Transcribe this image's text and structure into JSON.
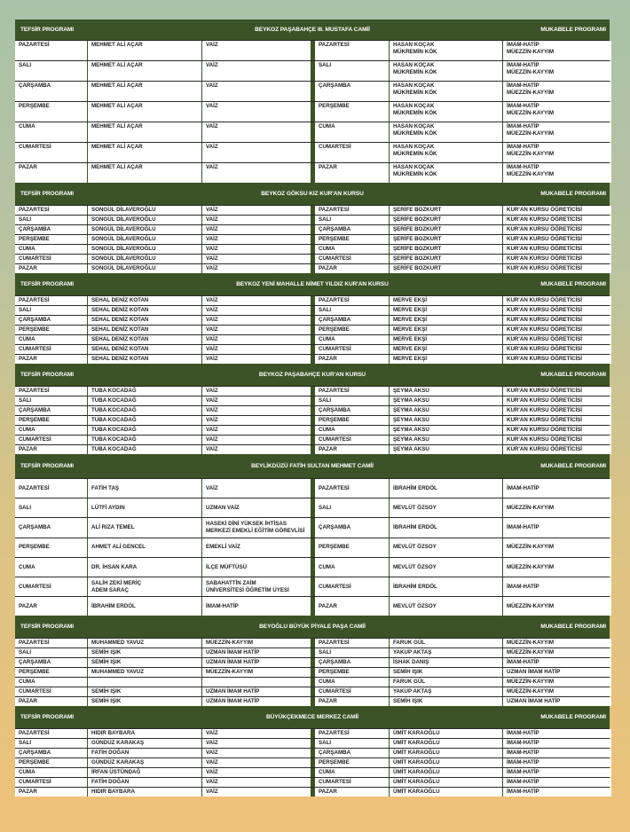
{
  "labels": {
    "left": "TEFSİR PROGRAMI",
    "right": "MUKABELE PROGRAMI"
  },
  "colors": {
    "panel": "#3b5326",
    "cell": "#ffffff"
  },
  "sections": [
    {
      "title": "BEYKOZ PAŞABAHÇE III. MUSTAFA CAMİİ",
      "rows": [
        [
          "PAZARTESİ",
          "MEHMET ALİ AÇAR",
          "VAİZ",
          "PAZARTESİ",
          "HASAN KOÇAK\nMÜKREMİN KÖK",
          "İMAM-HATİP\nMÜEZZİN-KAYYIM"
        ],
        [
          "SALI",
          "MEHMET ALİ AÇAR",
          "VAİZ",
          "SALI",
          "HASAN KOÇAK\nMÜKREMİN KÖK",
          "İMAM-HATİP\nMÜEZZİN-KAYYIM"
        ],
        [
          "ÇARŞAMBA",
          "MEHMET ALİ AÇAR",
          "VAİZ",
          "ÇARŞAMBA",
          "HASAN KOÇAK\nMÜKREMİN KÖK",
          "İMAM-HATİP\nMÜEZZİN-KAYYIM"
        ],
        [
          "PERŞEMBE",
          "MEHMET ALİ AÇAR",
          "VAİZ",
          "PERŞEMBE",
          "HASAN KOÇAK\nMÜKREMİN KÖK",
          "İMAM-HATİP\nMÜEZZİN-KAYYIM"
        ],
        [
          "CUMA",
          "MEHMET ALİ AÇAR",
          "VAİZ",
          "CUMA",
          "HASAN KOÇAK\nMÜKREMİN KÖK",
          "İMAM-HATİP\nMÜEZZİN-KAYYIM"
        ],
        [
          "CUMARTESİ",
          "MEHMET ALİ AÇAR",
          "VAİZ",
          "CUMARTESİ",
          "HASAN KOÇAK\nMÜKREMİN KÖK",
          "İMAM-HATİP\nMÜEZZİN-KAYYIM"
        ],
        [
          "PAZAR",
          "MEHMET ALİ AÇAR",
          "VAİZ",
          "PAZAR",
          "HASAN KOÇAK\nMÜKREMİN KÖK",
          "İMAM-HATİP\nMÜEZZİN-KAYYIM"
        ]
      ]
    },
    {
      "title": "BEYKOZ GÖKSU KIZ KUR'AN KURSU",
      "rows": [
        [
          "PAZARTESİ",
          "SONGÜL DİLAVEROĞLU",
          "VAİZ",
          "PAZARTESİ",
          "ŞERİFE BOZKURT",
          "KUR'AN KURSU ÖĞRETİCİSİ"
        ],
        [
          "SALI",
          "SONGÜL DİLAVEROĞLU",
          "VAİZ",
          "SALI",
          "ŞERİFE BOZKURT",
          "KUR'AN KURSU ÖĞRETİCİSİ"
        ],
        [
          "ÇARŞAMBA",
          "SONGÜL DİLAVEROĞLU",
          "VAİZ",
          "ÇARŞAMBA",
          "ŞERİFE BOZKURT",
          "KUR'AN KURSU ÖĞRETİCİSİ"
        ],
        [
          "PERŞEMBE",
          "SONGÜL DİLAVEROĞLU",
          "VAİZ",
          "PERŞEMBE",
          "ŞERİFE BOZKURT",
          "KUR'AN KURSU ÖĞRETİCİSİ"
        ],
        [
          "CUMA",
          "SONGÜL DİLAVEROĞLU",
          "VAİZ",
          "CUMA",
          "ŞERİFE BOZKURT",
          "KUR'AN KURSU ÖĞRETİCİSİ"
        ],
        [
          "CUMARTESİ",
          "SONGÜL DİLAVEROĞLU",
          "VAİZ",
          "CUMARTESİ",
          "ŞERİFE BOZKURT",
          "KUR'AN KURSU ÖĞRETİCİSİ"
        ],
        [
          "PAZAR",
          "SONGÜL DİLAVEROĞLU",
          "VAİZ",
          "PAZAR",
          "ŞERİFE BOZKURT",
          "KUR'AN KURSU ÖĞRETİCİSİ"
        ]
      ]
    },
    {
      "title": "BEYKOZ YENİ MAHALLE NİMET YILDIZ KUR'AN KURSU",
      "rows": [
        [
          "PAZARTESİ",
          "SEHAL DENİZ KOTAN",
          "VAİZ",
          "PAZARTESİ",
          "MERVE EKŞİ",
          "KUR'AN KURSU ÖĞRETİCİSİ"
        ],
        [
          "SALI",
          "SEHAL DENİZ KOTAN",
          "VAİZ",
          "SALI",
          "MERVE EKŞİ",
          "KUR'AN KURSU ÖĞRETİCİSİ"
        ],
        [
          "ÇARŞAMBA",
          "SEHAL DENİZ KOTAN",
          "VAİZ",
          "ÇARŞAMBA",
          "MERVE EKŞİ",
          "KUR'AN KURSU ÖĞRETİCİSİ"
        ],
        [
          "PERŞEMBE",
          "SEHAL DENİZ KOTAN",
          "VAİZ",
          "PERŞEMBE",
          "MERVE EKŞİ",
          "KUR'AN KURSU ÖĞRETİCİSİ"
        ],
        [
          "CUMA",
          "SEHAL DENİZ KOTAN",
          "VAİZ",
          "CUMA",
          "MERVE EKŞİ",
          "KUR'AN KURSU ÖĞRETİCİSİ"
        ],
        [
          "CUMARTESİ",
          "SEHAL DENİZ KOTAN",
          "VAİZ",
          "CUMARTESİ",
          "MERVE EKŞİ",
          "KUR'AN KURSU ÖĞRETİCİSİ"
        ],
        [
          "PAZAR",
          "SEHAL DENİZ KOTAN",
          "VAİZ",
          "PAZAR",
          "MERVE EKŞİ",
          "KUR'AN KURSU ÖĞRETİCİSİ"
        ]
      ]
    },
    {
      "title": "BEYKOZ PAŞABAHÇE KUR'AN KURSU",
      "rows": [
        [
          "PAZARTESİ",
          "TUBA KOCADAĞ",
          "VAİZ",
          "PAZARTESİ",
          "ŞEYMA AKSU",
          "KUR'AN KURSU ÖĞRETİCİSİ"
        ],
        [
          "SALI",
          "TUBA KOCADAĞ",
          "VAİZ",
          "SALI",
          "ŞEYMA AKSU",
          "KUR'AN KURSU ÖĞRETİCİSİ"
        ],
        [
          "ÇARŞAMBA",
          "TUBA KOCADAĞ",
          "VAİZ",
          "ÇARŞAMBA",
          "ŞEYMA AKSU",
          "KUR'AN KURSU ÖĞRETİCİSİ"
        ],
        [
          "PERŞEMBE",
          "TUBA KOCADAĞ",
          "VAİZ",
          "PERŞEMBE",
          "ŞEYMA AKSU",
          "KUR'AN KURSU ÖĞRETİCİSİ"
        ],
        [
          "CUMA",
          "TUBA KOCADAĞ",
          "VAİZ",
          "CUMA",
          "ŞEYMA AKSU",
          "KUR'AN KURSU ÖĞRETİCİSİ"
        ],
        [
          "CUMARTESİ",
          "TUBA KOCADAĞ",
          "VAİZ",
          "CUMARTESİ",
          "ŞEYMA AKSU",
          "KUR'AN KURSU ÖĞRETİCİSİ"
        ],
        [
          "PAZAR",
          "TUBA KOCADAĞ",
          "VAİZ",
          "PAZAR",
          "ŞEYMA AKSU",
          "KUR'AN KURSU ÖĞRETİCİSİ"
        ]
      ]
    },
    {
      "title": "BEYLİKDÜZÜ FATİH SULTAN MEHMET CAMİİ",
      "rows": [
        [
          "PAZARTESİ",
          "FATİH TAŞ",
          "VAİZ",
          "PAZARTESİ",
          "İBRAHİM ERDÖL",
          "İMAM-HATİP"
        ],
        [
          "SALI",
          "LÜTFİ AYDIN",
          "UZMAN VAİZ",
          "SALI",
          "MEVLÜT ÖZSOY",
          "MÜEZZİN-KAYYIM"
        ],
        [
          "ÇARŞAMBA",
          "ALİ RIZA TEMEL",
          "HASEKİ DİNİ YÜKSEK İHTİSAS\nMERKEZİ EMEKLİ EĞİTİM GÖREVLİSİ",
          "ÇARŞAMBA",
          "İBRAHİM ERDÖL",
          "İMAM-HATİP"
        ],
        [
          "PERŞEMBE",
          "AHMET ALİ GENCEL",
          "EMEKLİ VAİZ",
          "PERŞEMBE",
          "MEVLÜT ÖZSOY",
          "MÜEZZİN-KAYYIM"
        ],
        [
          "CUMA",
          "DR. İHSAN KARA",
          "İLÇE MÜFTÜSÜ",
          "CUMA",
          "MEVLÜT ÖZSOY",
          "MÜEZZİN-KAYYIM"
        ],
        [
          "CUMARTESİ",
          "SALİH ZEKİ MERİÇ\nADEM SARAÇ",
          "SABAHATTİN ZAİM\nÜNİVERSİTESİ ÖĞRETİM ÜYESİ",
          "CUMARTESİ",
          "İBRAHİM ERDÖL",
          "İMAM-HATİP"
        ],
        [
          "PAZAR",
          "İBRAHİM ERDÖL",
          "İMAM-HATİP",
          "PAZAR",
          "MEVLÜT ÖZSOY",
          "MÜEZZİN-KAYYIM"
        ]
      ]
    },
    {
      "title": "BEYOĞLU BÜYÜK PİYALE PAŞA CAMİİ",
      "rows": [
        [
          "PAZARTESİ",
          "MUHAMMED YAVUZ",
          "MÜEZZİN-KAYYIM",
          "PAZARTESİ",
          "FARUK GÜL",
          "MÜEZZİN-KAYYIM"
        ],
        [
          "SALI",
          "SEMİH IŞIK",
          "UZMAN İMAM HATİP",
          "SALI",
          "YAKUP AKTAŞ",
          "MÜEZZİN-KAYYIM"
        ],
        [
          "ÇARŞAMBA",
          "SEMİH IŞIK",
          "UZMAN İMAM HATİP",
          "ÇARŞAMBA",
          "İSHAK DANIŞ",
          "İMAM-HATİP"
        ],
        [
          "PERŞEMBE",
          "MUHAMMED YAVUZ",
          "MÜEZZİN-KAYYIM",
          "PERŞEMBE",
          "SEMİH IŞIK",
          "UZMAN İMAM HATİP"
        ],
        [
          "CUMA",
          "",
          "",
          "CUMA",
          "FARUK GÜL",
          "MÜEZZİN-KAYYIM"
        ],
        [
          "CUMARTESİ",
          "SEMİH IŞIK",
          "UZMAN İMAM HATİP",
          "CUMARTESİ",
          "YAKUP AKTAŞ",
          "MÜEZZİN-KAYYIM"
        ],
        [
          "PAZAR",
          "SEMİH IŞIK",
          "UZMAN İMAM HATİP",
          "PAZAR",
          "SEMİH IŞIK",
          "UZMAN İMAM HATİP"
        ]
      ]
    },
    {
      "title": "BÜYÜKÇEKMECE MERKEZ CAMİİ",
      "rows": [
        [
          "PAZARTESİ",
          "HIDIR BAYBARA",
          "VAİZ",
          "PAZARTESİ",
          "ÜMİT KARAOĞLU",
          "İMAM-HATİP"
        ],
        [
          "SALI",
          "GÜNDÜZ KARAKAŞ",
          "VAİZ",
          "SALI",
          "ÜMİT KARAOĞLU",
          "İMAM-HATİP"
        ],
        [
          "ÇARŞAMBA",
          "FATİH DOĞAN",
          "VAİZ",
          "ÇARŞAMBA",
          "ÜMİT KARAOĞLU",
          "İMAM-HATİP"
        ],
        [
          "PERŞEMBE",
          "GÜNDÜZ KARAKAŞ",
          "VAİZ",
          "PERŞEMBE",
          "ÜMİT KARAOĞLU",
          "İMAM-HATİP"
        ],
        [
          "CUMA",
          "İRFAN ÜSTÜNDAĞ",
          "VAİZ",
          "CUMA",
          "ÜMİT KARAOĞLU",
          "İMAM-HATİP"
        ],
        [
          "CUMARTESİ",
          "FATİH DOĞAN",
          "VAİZ",
          "CUMARTESİ",
          "ÜMİT KARAOĞLU",
          "İMAM-HATİP"
        ],
        [
          "PAZAR",
          "HIDIR BAYBARA",
          "VAİZ",
          "PAZAR",
          "ÜMİT KARAOĞLU",
          "İMAM-HATİP"
        ]
      ]
    }
  ]
}
